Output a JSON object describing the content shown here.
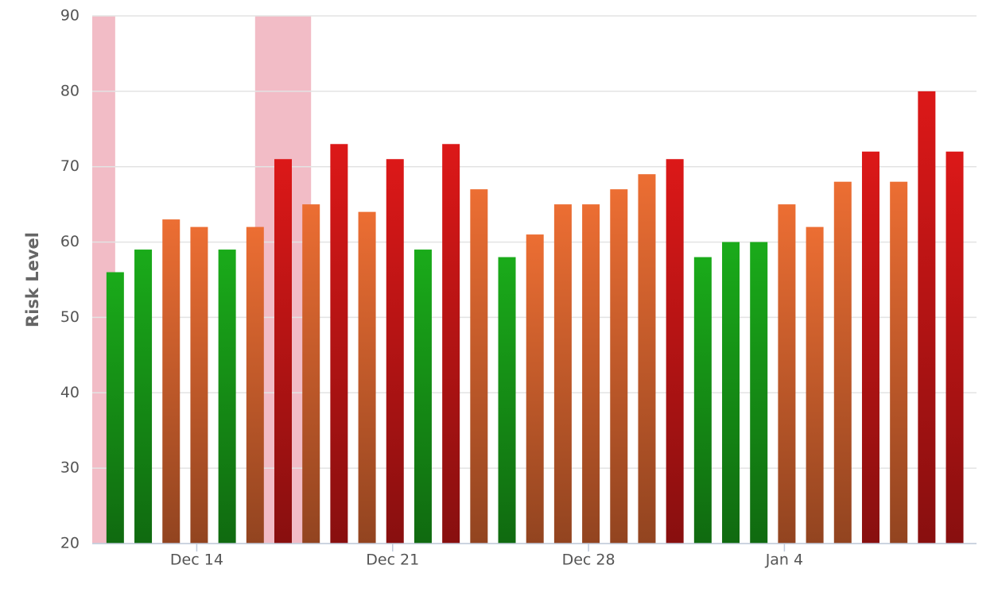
{
  "chart_data": {
    "type": "bar",
    "y_axis_label": "Risk Level",
    "categories": [
      null,
      null,
      null,
      "Dec 14",
      null,
      null,
      null,
      null,
      null,
      null,
      "Dec 21",
      null,
      null,
      null,
      null,
      null,
      null,
      "Dec 28",
      null,
      null,
      null,
      null,
      null,
      null,
      "Jan 4",
      null,
      null,
      null,
      null,
      null,
      null
    ],
    "values": [
      56,
      59,
      63,
      62,
      59,
      62,
      71,
      65,
      73,
      64,
      71,
      59,
      73,
      67,
      58,
      61,
      65,
      65,
      67,
      69,
      71,
      58,
      60,
      60,
      65,
      62,
      68,
      72,
      68,
      80,
      72
    ],
    "colors": [
      "#1aab1a",
      "#1aab1a",
      "#ec6e33",
      "#ec6e33",
      "#1aab1a",
      "#ec6e33",
      "#dc1818",
      "#ec6e33",
      "#dc1818",
      "#ec6e33",
      "#dc1818",
      "#1aab1a",
      "#dc1818",
      "#ec6e33",
      "#1aab1a",
      "#ec6e33",
      "#ec6e33",
      "#ec6e33",
      "#ec6e33",
      "#ec6e33",
      "#dc1818",
      "#1aab1a",
      "#1aab1a",
      "#1aab1a",
      "#ec6e33",
      "#ec6e33",
      "#ec6e33",
      "#dc1818",
      "#ec6e33",
      "#dc1818",
      "#dc1818"
    ],
    "bands": [
      {
        "from": -1,
        "to": 0
      },
      {
        "from": 5,
        "to": 7
      }
    ],
    "band_color": "#f2bcc6",
    "ylim": [
      20,
      90
    ],
    "yticks": [
      20,
      30,
      40,
      50,
      60,
      70,
      80,
      90
    ],
    "grid": true
  }
}
